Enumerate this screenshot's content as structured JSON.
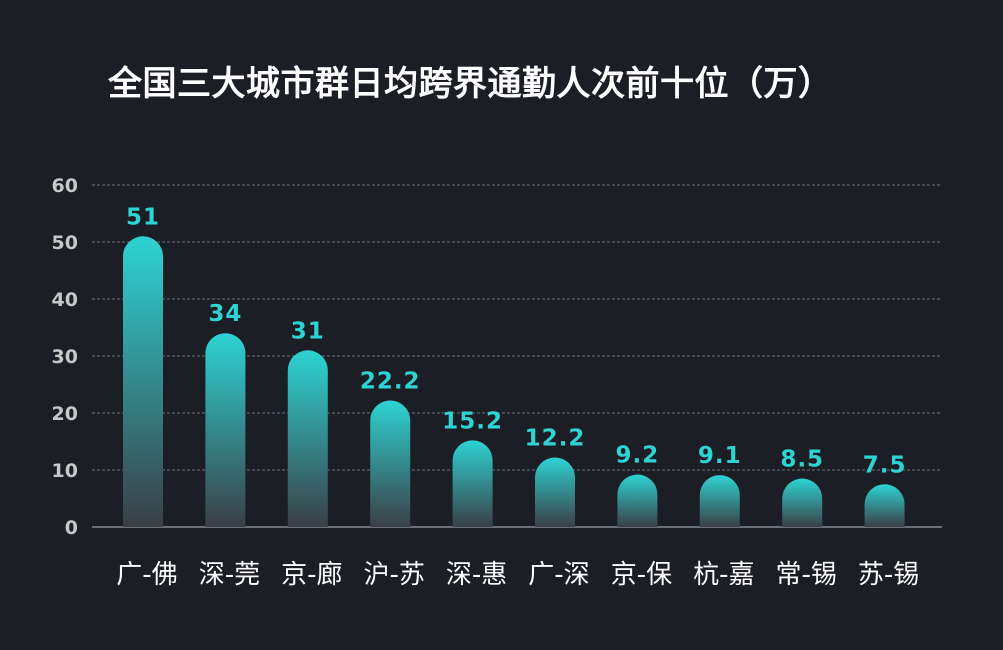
{
  "title": "全国三大城市群日均跨界通勤人次前十位（万）",
  "colors": {
    "background": "#1c1e26",
    "bar_top": "#2ed3d3",
    "bar_bottom": "#3a3f45",
    "value_label": "#2ed3d3",
    "tick_label": "#c7c7c7",
    "category_label": "#ffffff",
    "gridline": "#8a8f99"
  },
  "chart_data": {
    "type": "bar",
    "title": "全国三大城市群日均跨界通勤人次前十位（万）",
    "xlabel": "",
    "ylabel": "",
    "categories": [
      "广-佛",
      "深-莞",
      "京-廊",
      "沪-苏",
      "深-惠",
      "广-深",
      "京-保",
      "杭-嘉",
      "常-锡",
      "苏-锡"
    ],
    "values": [
      51,
      34,
      31,
      22.2,
      15.2,
      12.2,
      9.2,
      9.1,
      8.5,
      7.5
    ],
    "value_labels": [
      "51",
      "34",
      "31",
      "22.2",
      "15.2",
      "12.2",
      "9.2",
      "9.1",
      "8.5",
      "7.5"
    ],
    "ylim": [
      0,
      60
    ],
    "yticks": [
      0,
      10,
      20,
      30,
      40,
      50,
      60
    ],
    "grid": true,
    "legend": "none"
  }
}
